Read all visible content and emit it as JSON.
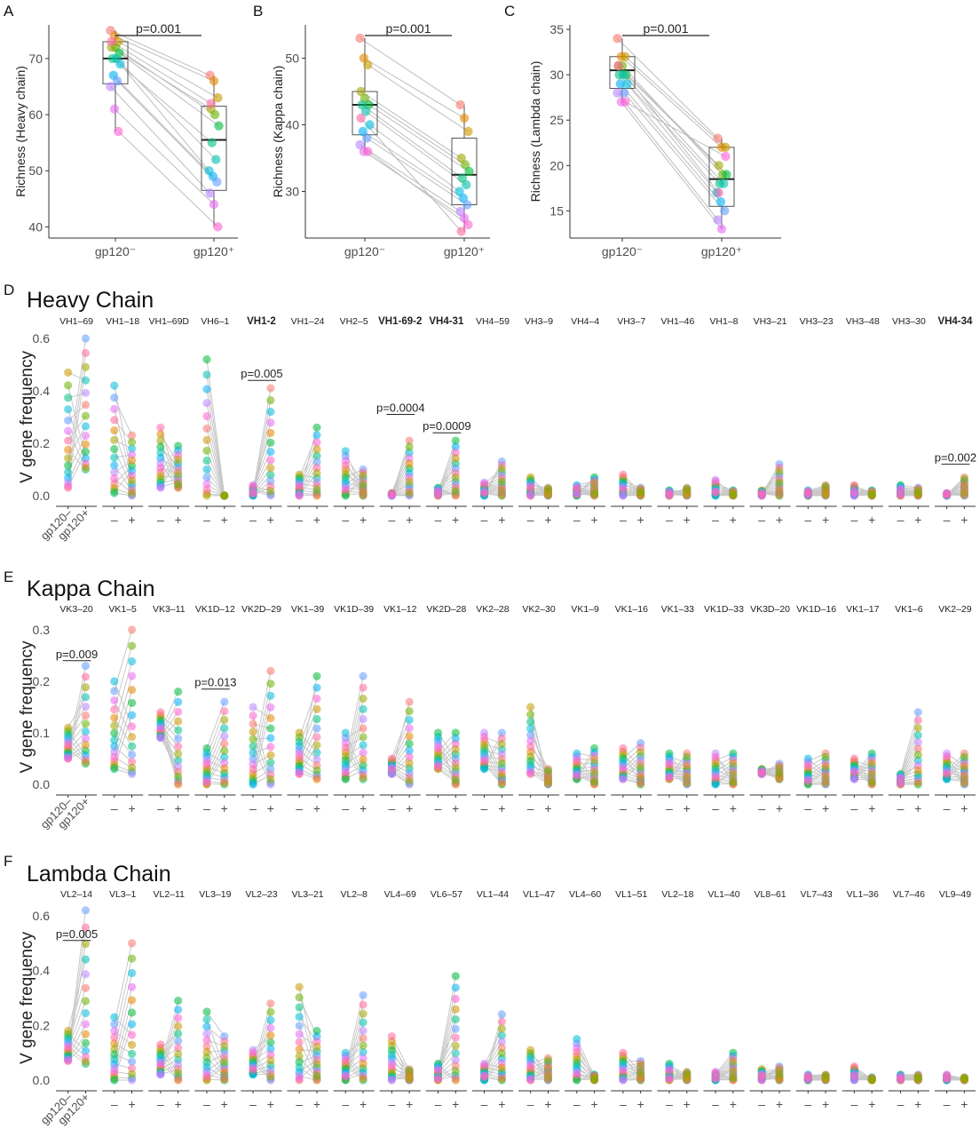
{
  "colors": {
    "points": [
      "#F8766D",
      "#E58700",
      "#C99800",
      "#A3A500",
      "#6BB100",
      "#00BA38",
      "#00BF7D",
      "#00C0AF",
      "#00BCD8",
      "#00B0F6",
      "#619CFF",
      "#B983FF",
      "#E76BF3",
      "#FD61D1",
      "#FF67A4"
    ],
    "line": "#bdbdbd",
    "box": "#555555",
    "axis": "#333333",
    "tick_text": "#4d4d4d"
  },
  "chart_data": [
    {
      "panel": "A",
      "type": "box_paired",
      "ylabel": "Richness (Heavy chain)",
      "categories": [
        "gp120⁻",
        "gp120⁺"
      ],
      "ylim": [
        38,
        76
      ],
      "yticks": [
        40,
        50,
        60,
        70
      ],
      "pvalue": "p=0.001",
      "box": [
        {
          "q1": 65.5,
          "median": 70,
          "q3": 73,
          "wlo": 57,
          "whi": 75
        },
        {
          "q1": 46.5,
          "median": 55.5,
          "q3": 61.5,
          "wlo": 40,
          "whi": 67
        }
      ],
      "neg": [
        75,
        74,
        73,
        72,
        72,
        71,
        70,
        70,
        69,
        67,
        66,
        65,
        61,
        57,
        73
      ],
      "pos": [
        67,
        66,
        63,
        61,
        60,
        58,
        55,
        52,
        50,
        49,
        48,
        46,
        44,
        40,
        62
      ]
    },
    {
      "panel": "B",
      "type": "box_paired",
      "ylabel": "Richness (Kappa chain)",
      "categories": [
        "gp120⁻",
        "gp120⁺"
      ],
      "ylim": [
        23,
        55
      ],
      "yticks": [
        30,
        40,
        50
      ],
      "pvalue": "p=0.001",
      "box": [
        {
          "q1": 38.5,
          "median": 43,
          "q3": 45,
          "wlo": 36,
          "whi": 53
        },
        {
          "q1": 28,
          "median": 32.5,
          "q3": 38,
          "wlo": 24,
          "whi": 43
        }
      ],
      "neg": [
        53,
        50,
        49,
        45,
        44,
        43,
        43,
        42,
        40,
        39,
        38,
        37,
        36,
        36,
        41
      ],
      "pos": [
        43,
        41,
        39,
        35,
        34,
        33,
        32,
        31,
        30,
        29,
        28,
        27,
        26,
        25,
        24
      ]
    },
    {
      "panel": "C",
      "type": "box_paired",
      "ylabel": "Richness (Lambda chain)",
      "categories": [
        "gp120⁻",
        "gp120⁺"
      ],
      "ylim": [
        12,
        35.5
      ],
      "yticks": [
        15,
        20,
        25,
        30,
        35
      ],
      "pvalue": "p=0.001",
      "box": [
        {
          "q1": 28.5,
          "median": 30.5,
          "q3": 32,
          "wlo": 27,
          "whi": 34
        },
        {
          "q1": 15.5,
          "median": 18.5,
          "q3": 22,
          "wlo": 13,
          "whi": 23
        }
      ],
      "neg": [
        34,
        32,
        32,
        31,
        31,
        30,
        30,
        30,
        29,
        29,
        28,
        28,
        27,
        27,
        31
      ],
      "pos": [
        23,
        22,
        22,
        20,
        19,
        19,
        18,
        18,
        17,
        16,
        15,
        14,
        13,
        21,
        17
      ]
    },
    {
      "panel": "D",
      "type": "scatter_paired",
      "title": "Heavy Chain",
      "ylabel": "V gene frequency",
      "yticks": [
        0.0,
        0.2,
        0.4,
        0.6
      ],
      "ylim": [
        -0.04,
        0.64
      ],
      "x_first": [
        "gp120–",
        "gp120+"
      ],
      "x_other": [
        "–",
        "+"
      ],
      "genes": [
        "VH1–69",
        "VH1–18",
        "VH1–69D",
        "VH6–1",
        "VH1-2",
        "VH1–24",
        "VH2–5",
        "VH1-69-2",
        "VH4-31",
        "VH4–59",
        "VH3–9",
        "VH4–4",
        "VH3–7",
        "VH1–46",
        "VH1–8",
        "VH3–21",
        "VH3–23",
        "VH3–48",
        "VH3–30",
        "VH4-34"
      ],
      "bold": [
        4,
        7,
        8,
        19
      ],
      "pvalues": [
        {
          "gene": 4,
          "text": "p=0.005",
          "y": 0.44
        },
        {
          "gene": 7,
          "text": "p=0.0004",
          "y": 0.31
        },
        {
          "gene": 8,
          "text": "p=0.0009",
          "y": 0.24
        },
        {
          "gene": 19,
          "text": "p=0.002",
          "y": 0.12
        }
      ],
      "neg_hi": [
        0.47,
        0.42,
        0.26,
        0.52,
        0.04,
        0.08,
        0.17,
        0.01,
        0.03,
        0.05,
        0.07,
        0.04,
        0.08,
        0.02,
        0.06,
        0.02,
        0.02,
        0.04,
        0.04,
        0.01
      ],
      "neg_lo": [
        0.03,
        0.01,
        0.03,
        0.0,
        0.0,
        0.0,
        0.0,
        0.0,
        0.0,
        0.0,
        0.0,
        0.0,
        0.0,
        0.0,
        0.0,
        0.0,
        0.0,
        0.0,
        0.0,
        0.0
      ],
      "pos_hi": [
        0.6,
        0.23,
        0.19,
        0.0,
        0.41,
        0.26,
        0.1,
        0.21,
        0.21,
        0.13,
        0.03,
        0.07,
        0.03,
        0.03,
        0.02,
        0.12,
        0.04,
        0.02,
        0.03,
        0.07
      ],
      "pos_lo": [
        0.1,
        0.0,
        0.03,
        0.0,
        0.0,
        0.0,
        0.0,
        0.0,
        0.0,
        0.0,
        0.0,
        0.0,
        0.0,
        0.0,
        0.0,
        0.0,
        0.0,
        0.0,
        0.0,
        0.0
      ]
    },
    {
      "panel": "E",
      "type": "scatter_paired",
      "title": "Kappa Chain",
      "ylabel": "V gene frequency",
      "yticks": [
        0.0,
        0.1,
        0.2,
        0.3
      ],
      "ylim": [
        -0.02,
        0.31
      ],
      "x_first": [
        "gp120–",
        "gp120+"
      ],
      "x_other": [
        "–",
        "+"
      ],
      "genes": [
        "VK3–20",
        "VK1–5",
        "VK3–11",
        "VK1D–12",
        "VK2D–29",
        "VK1–39",
        "VK1D–39",
        "VK1–12",
        "VK2D–28",
        "VK2–28",
        "VK2–30",
        "VK1–9",
        "VK1–16",
        "VK1–33",
        "VK1D–33",
        "VK3D–20",
        "VK1D–16",
        "VK1–17",
        "VK1–6",
        "VK2–29"
      ],
      "bold": [],
      "pvalues": [
        {
          "gene": 0,
          "text": "p=0.009",
          "y": 0.24
        },
        {
          "gene": 3,
          "text": "p=0.013",
          "y": 0.185
        }
      ],
      "neg_hi": [
        0.11,
        0.2,
        0.14,
        0.07,
        0.15,
        0.1,
        0.1,
        0.05,
        0.1,
        0.1,
        0.15,
        0.06,
        0.07,
        0.06,
        0.06,
        0.03,
        0.05,
        0.05,
        0.02,
        0.06
      ],
      "neg_lo": [
        0.05,
        0.03,
        0.09,
        0.0,
        0.0,
        0.02,
        0.01,
        0.02,
        0.03,
        0.03,
        0.02,
        0.01,
        0.01,
        0.01,
        0.0,
        0.02,
        0.0,
        0.01,
        0.0,
        0.01
      ],
      "pos_hi": [
        0.23,
        0.3,
        0.18,
        0.16,
        0.22,
        0.21,
        0.21,
        0.16,
        0.1,
        0.1,
        0.03,
        0.07,
        0.08,
        0.06,
        0.06,
        0.04,
        0.06,
        0.06,
        0.14,
        0.06
      ],
      "pos_lo": [
        0.04,
        0.02,
        0.0,
        0.0,
        0.0,
        0.01,
        0.01,
        0.0,
        0.0,
        0.0,
        0.0,
        0.0,
        0.0,
        0.0,
        0.0,
        0.01,
        0.0,
        0.0,
        0.0,
        0.0
      ]
    },
    {
      "panel": "F",
      "type": "scatter_paired",
      "title": "Lambda Chain",
      "ylabel": "V gene frequency",
      "yticks": [
        0.0,
        0.2,
        0.4,
        0.6
      ],
      "ylim": [
        -0.04,
        0.64
      ],
      "x_first": [
        "gp120–",
        "gp120+"
      ],
      "x_other": [
        "–",
        "+"
      ],
      "genes": [
        "VL2–14",
        "VL3–1",
        "VL2–11",
        "VL3–19",
        "VL2–23",
        "VL3–21",
        "VL2–8",
        "VL4–69",
        "VL6–57",
        "VL1–44",
        "VL1–47",
        "VL4–60",
        "VL1–51",
        "VL2–18",
        "VL1–40",
        "VL8–61",
        "VL7–43",
        "VL1–36",
        "VL7–46",
        "VL9–49"
      ],
      "bold": [],
      "pvalues": [
        {
          "gene": 0,
          "text": "p=0.005",
          "y": 0.51
        }
      ],
      "neg_hi": [
        0.18,
        0.23,
        0.13,
        0.25,
        0.11,
        0.34,
        0.1,
        0.16,
        0.06,
        0.06,
        0.11,
        0.15,
        0.1,
        0.06,
        0.03,
        0.04,
        0.02,
        0.05,
        0.02,
        0.02
      ],
      "neg_lo": [
        0.07,
        0.0,
        0.02,
        0.0,
        0.02,
        0.0,
        0.0,
        0.0,
        0.0,
        0.0,
        0.0,
        0.0,
        0.0,
        0.0,
        0.0,
        0.0,
        0.0,
        0.0,
        0.0,
        0.0
      ],
      "pos_hi": [
        0.62,
        0.5,
        0.29,
        0.16,
        0.28,
        0.18,
        0.31,
        0.04,
        0.38,
        0.24,
        0.08,
        0.02,
        0.07,
        0.03,
        0.1,
        0.05,
        0.02,
        0.01,
        0.02,
        0.01
      ],
      "pos_lo": [
        0.06,
        0.0,
        0.0,
        0.0,
        0.0,
        0.0,
        0.0,
        0.0,
        0.0,
        0.0,
        0.0,
        0.0,
        0.0,
        0.0,
        0.0,
        0.0,
        0.0,
        0.0,
        0.0,
        0.0
      ]
    }
  ]
}
